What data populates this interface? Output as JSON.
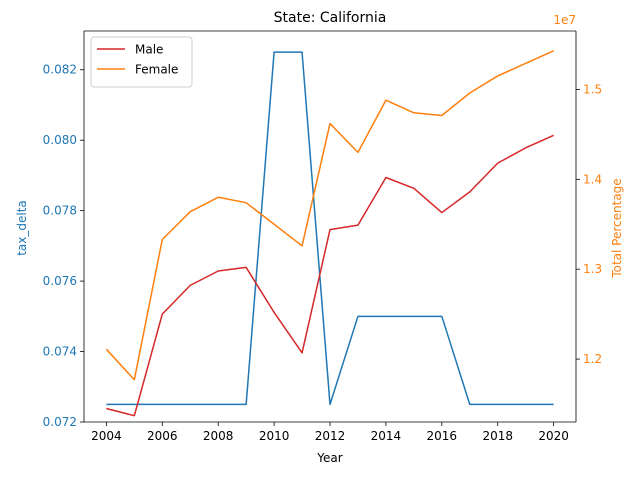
{
  "chart_data": {
    "type": "line",
    "title": "State: California",
    "xlabel": "Year",
    "ylabel_left": "tax_delta",
    "ylabel_right": "Total Percentage",
    "right_offset_label": "1e7",
    "x": [
      2004,
      2005,
      2006,
      2007,
      2008,
      2009,
      2010,
      2011,
      2012,
      2013,
      2014,
      2015,
      2016,
      2017,
      2018,
      2019,
      2020
    ],
    "xlim": [
      2003.2,
      2020.8
    ],
    "xticks": [
      2004,
      2006,
      2008,
      2010,
      2012,
      2014,
      2016,
      2018,
      2020
    ],
    "left_axis": {
      "ylim": [
        0.072,
        0.0831
      ],
      "ticks": [
        0.072,
        0.074,
        0.076,
        0.078,
        0.08,
        0.082
      ],
      "tick_labels": [
        "0.072",
        "0.074",
        "0.076",
        "0.078",
        "0.080",
        "0.082"
      ],
      "color": "#1f77b4"
    },
    "right_axis": {
      "ylim": [
        11.3,
        15.65
      ],
      "ticks": [
        12,
        13,
        14,
        15
      ],
      "tick_labels": [
        "1.2",
        "1.3",
        "1.4",
        "1.5"
      ],
      "color": "#ff7f0e",
      "scale_note": "values in units of 1e6; tick labels in units of 1e7"
    },
    "series": [
      {
        "axis": "left",
        "color": "#1f77b4",
        "values": [
          0.0725,
          0.0725,
          0.0725,
          0.0725,
          0.0725,
          0.0725,
          0.0825,
          0.0825,
          0.0725,
          0.075,
          0.075,
          0.075,
          0.075,
          0.0725,
          0.0725,
          0.0725,
          0.0725
        ]
      },
      {
        "name": "Male",
        "axis": "right",
        "color": "#d62728",
        "values": [
          11.45,
          11.37,
          12.5,
          12.82,
          12.98,
          13.02,
          12.52,
          12.07,
          13.44,
          13.49,
          14.02,
          13.9,
          13.63,
          13.86,
          14.18,
          14.35,
          14.49
        ]
      },
      {
        "name": "Female",
        "axis": "right",
        "color": "#ff7f0e",
        "values": [
          12.11,
          11.77,
          13.33,
          13.64,
          13.8,
          13.74,
          13.5,
          13.26,
          14.62,
          14.3,
          14.88,
          14.74,
          14.71,
          14.96,
          15.15,
          15.29,
          15.43
        ]
      }
    ],
    "legend": {
      "placement": "top-left",
      "entries": [
        "Male",
        "Female"
      ]
    },
    "grid": false
  }
}
